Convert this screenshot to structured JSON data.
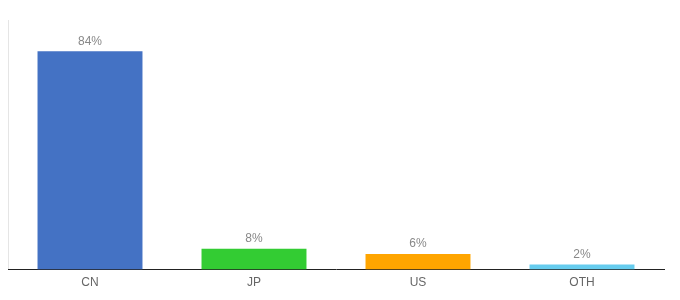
{
  "chart_data": {
    "type": "bar",
    "categories": [
      "CN",
      "JP",
      "US",
      "OTH"
    ],
    "values": [
      84,
      8,
      6,
      2
    ],
    "value_labels": [
      "84%",
      "8%",
      "6%",
      "2%"
    ],
    "data_labels": true,
    "colors": [
      "#4472C4",
      "#33CC33",
      "#FFA500",
      "#66CCEE"
    ],
    "ylim": [
      0,
      96
    ],
    "grid": false,
    "legend": "none",
    "tick_labels": "x"
  }
}
